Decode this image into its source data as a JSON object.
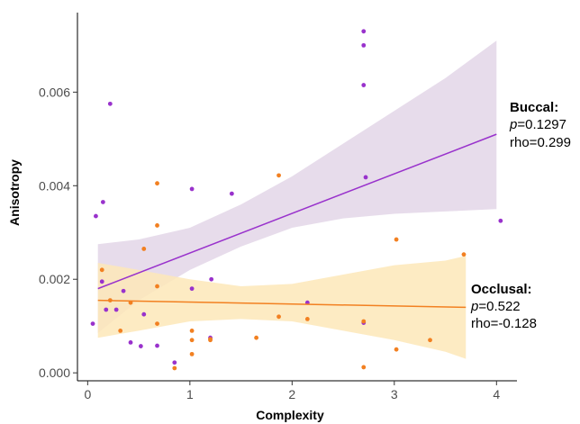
{
  "chart_data": {
    "type": "scatter",
    "title": "",
    "xlabel": "Complexity",
    "ylabel": "Anisotropy",
    "xlim": [
      -0.1,
      4.2
    ],
    "ylim": [
      -0.00017,
      0.0077
    ],
    "x_ticks": [
      0,
      1,
      2,
      3,
      4
    ],
    "x_tick_labels": [
      "0",
      "1",
      "2",
      "3",
      "4"
    ],
    "y_ticks": [
      0.0,
      0.002,
      0.004,
      0.006
    ],
    "y_tick_labels": [
      "0.000",
      "0.002",
      "0.004",
      "0.006"
    ],
    "grid": false,
    "legend": "none",
    "series": [
      {
        "name": "Buccal",
        "color": "#9932cc",
        "band_color": "#e3d6e8",
        "points": [
          [
            0.08,
            0.00335
          ],
          [
            0.05,
            0.00105
          ],
          [
            0.15,
            0.00365
          ],
          [
            0.22,
            0.00575
          ],
          [
            0.14,
            0.00195
          ],
          [
            0.18,
            0.00135
          ],
          [
            0.28,
            0.00135
          ],
          [
            0.35,
            0.00175
          ],
          [
            0.42,
            0.00065
          ],
          [
            0.52,
            0.00057
          ],
          [
            0.55,
            0.00125
          ],
          [
            0.68,
            0.00058
          ],
          [
            0.85,
            0.00022
          ],
          [
            1.02,
            0.00393
          ],
          [
            1.02,
            0.0018
          ],
          [
            1.21,
            0.002
          ],
          [
            1.41,
            0.00383
          ],
          [
            1.2,
            0.00075
          ],
          [
            2.15,
            0.0015
          ],
          [
            2.7,
            0.0073
          ],
          [
            2.7,
            0.007
          ],
          [
            2.7,
            0.00615
          ],
          [
            2.72,
            0.00418
          ],
          [
            2.7,
            0.00107
          ],
          [
            4.04,
            0.00325
          ]
        ],
        "fit": {
          "x": [
            0.1,
            4.0
          ],
          "y": [
            0.0018,
            0.0051
          ]
        },
        "band": {
          "x": [
            0.1,
            0.5,
            1.0,
            1.5,
            2.0,
            2.5,
            3.0,
            3.5,
            4.0
          ],
          "lower": [
            0.00085,
            0.00155,
            0.0022,
            0.0027,
            0.0031,
            0.0033,
            0.0034,
            0.00345,
            0.0035
          ],
          "upper": [
            0.00275,
            0.00285,
            0.0031,
            0.0036,
            0.0042,
            0.0049,
            0.0056,
            0.0063,
            0.0071
          ]
        },
        "annotation": {
          "title": "Buccal:",
          "p": "p",
          "p_value": "=0.1297",
          "rho": "rho=0.299"
        }
      },
      {
        "name": "Occlusal",
        "color": "#f28021",
        "band_color": "#fde7b8",
        "points": [
          [
            0.14,
            0.0022
          ],
          [
            0.22,
            0.00155
          ],
          [
            0.32,
            0.0009
          ],
          [
            0.42,
            0.0015
          ],
          [
            0.55,
            0.00265
          ],
          [
            0.68,
            0.00405
          ],
          [
            0.68,
            0.00315
          ],
          [
            0.68,
            0.00185
          ],
          [
            0.68,
            0.00105
          ],
          [
            0.85,
            0.0001
          ],
          [
            1.02,
            0.0009
          ],
          [
            1.02,
            0.0007
          ],
          [
            1.02,
            0.0004
          ],
          [
            1.2,
            0.0007
          ],
          [
            1.2,
            0.00072
          ],
          [
            1.65,
            0.00075
          ],
          [
            1.87,
            0.00422
          ],
          [
            1.87,
            0.0012
          ],
          [
            2.15,
            0.00115
          ],
          [
            2.7,
            0.0011
          ],
          [
            2.7,
            0.00012
          ],
          [
            3.02,
            0.00285
          ],
          [
            3.02,
            0.0005
          ],
          [
            3.35,
            0.0007
          ],
          [
            3.68,
            0.00253
          ]
        ],
        "fit": {
          "x": [
            0.1,
            3.7
          ],
          "y": [
            0.00155,
            0.0014
          ]
        },
        "band": {
          "x": [
            0.1,
            0.5,
            1.0,
            1.5,
            2.0,
            2.5,
            3.0,
            3.5,
            3.7
          ],
          "lower": [
            0.00075,
            0.0009,
            0.0011,
            0.00115,
            0.0011,
            0.0009,
            0.0007,
            0.00045,
            0.0003
          ],
          "upper": [
            0.00235,
            0.0022,
            0.002,
            0.00185,
            0.0019,
            0.0021,
            0.0023,
            0.0024,
            0.0025
          ]
        },
        "annotation": {
          "title": "Occlusal:",
          "p": "p",
          "p_value": "=0.522",
          "rho": "rho=-0.128"
        }
      }
    ]
  }
}
